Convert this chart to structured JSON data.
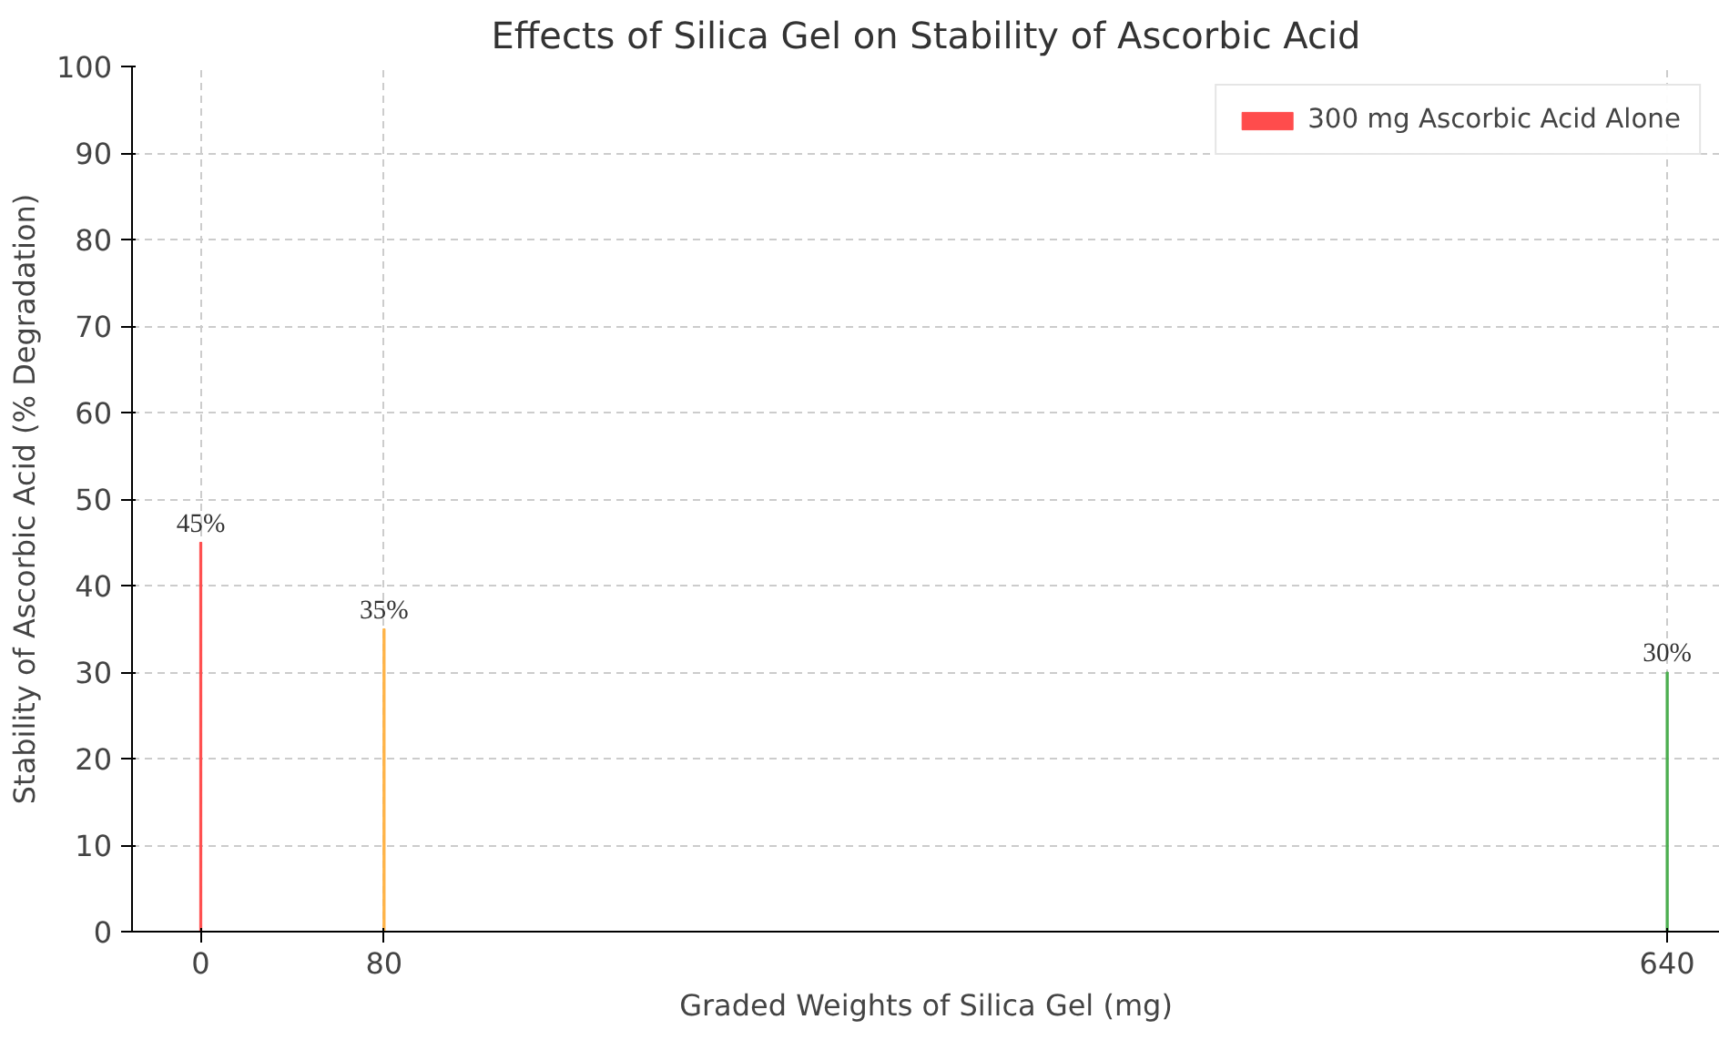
{
  "chart_data": {
    "type": "bar",
    "title": "Effects of Silica Gel on Stability of Ascorbic Acid",
    "xlabel": "Graded Weights of Silica Gel (mg)",
    "ylabel": "Stability of Ascorbic Acid (% Degradation)",
    "series": [
      {
        "name": "300 mg Ascorbic Acid Alone",
        "color": "#ff4c4c",
        "x": [
          0
        ],
        "values": [
          45
        ],
        "value_labels": [
          "45%"
        ]
      },
      {
        "color": "#ffb347",
        "x": [
          80
        ],
        "values": [
          35
        ],
        "value_labels": [
          "35%"
        ]
      },
      {
        "color": "#4caf50",
        "x": [
          640
        ],
        "values": [
          30
        ],
        "value_labels": [
          "30%"
        ]
      }
    ],
    "xlim": [
      -30,
      663
    ],
    "xticks": [
      0,
      80,
      640
    ],
    "ylim": [
      0,
      100
    ],
    "yticks": [
      0,
      10,
      20,
      30,
      40,
      50,
      60,
      70,
      80,
      90,
      100
    ],
    "grid": true,
    "legend": "top right"
  }
}
